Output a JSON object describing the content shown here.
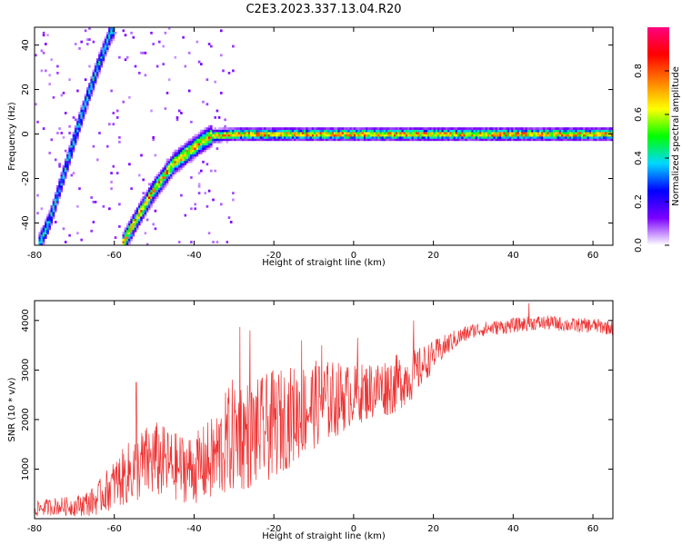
{
  "title": "C2E3.2023.337.13.04.R20",
  "chart_data": [
    {
      "type": "heatmap",
      "title": "C2E3.2023.337.13.04.R20",
      "xlabel": "Height of straight line (km)",
      "ylabel": "Frequency (Hz)",
      "xlim": [
        -80,
        65
      ],
      "ylim": [
        -50,
        48
      ],
      "xticks": [
        -80,
        -60,
        -40,
        -20,
        0,
        20,
        40,
        60
      ],
      "yticks": [
        -40,
        -20,
        0,
        20,
        40
      ],
      "colorbar": {
        "label": "Normalized spectral amplitude",
        "range": [
          0,
          1
        ],
        "ticks": [
          0.0,
          0.2,
          0.4,
          0.6,
          0.8
        ],
        "colormap": [
          "#ffffff",
          "#7b00ff",
          "#0000ff",
          "#00d8ff",
          "#00ff00",
          "#ffff00",
          "#ff8000",
          "#ff0000",
          "#ff0080"
        ]
      },
      "traces": [
        {
          "description": "steep rising trace (upper-left)",
          "points": [
            [
              -79,
              -50
            ],
            [
              -76,
              -38
            ],
            [
              -73,
              -20
            ],
            [
              -70,
              -2
            ],
            [
              -67,
              15
            ],
            [
              -64,
              31
            ],
            [
              -61,
              45
            ],
            [
              -60,
              48
            ]
          ],
          "peak_amplitude": 0.5
        },
        {
          "description": "main trace: rising then flat near 0 Hz",
          "points": [
            [
              -58,
              -50
            ],
            [
              -55,
              -40
            ],
            [
              -50,
              -25
            ],
            [
              -45,
              -13
            ],
            [
              -40,
              -6
            ],
            [
              -36,
              -1
            ],
            [
              -30,
              0
            ],
            [
              -20,
              0
            ],
            [
              0,
              0
            ],
            [
              20,
              0
            ],
            [
              40,
              0
            ],
            [
              65,
              0
            ]
          ],
          "peak_amplitude": 0.9
        }
      ]
    },
    {
      "type": "line",
      "xlabel": "Height of straight line (km)",
      "ylabel": "SNR (10 * v/v)",
      "xlim": [
        -80,
        65
      ],
      "ylim": [
        0,
        4400
      ],
      "xticks": [
        -80,
        -60,
        -40,
        -20,
        0,
        20,
        40,
        60
      ],
      "yticks": [
        1000,
        2000,
        3000,
        4000
      ],
      "color": "#ee3333",
      "envelope": {
        "x": [
          -80,
          -75,
          -70,
          -65,
          -60,
          -55,
          -50,
          -45,
          -40,
          -35,
          -30,
          -25,
          -20,
          -15,
          -10,
          -5,
          0,
          5,
          10,
          15,
          20,
          25,
          30,
          35,
          40,
          45,
          50,
          55,
          60,
          65
        ],
        "mean": [
          200,
          250,
          250,
          350,
          700,
          1000,
          1200,
          1050,
          1000,
          1200,
          1700,
          1700,
          1900,
          2100,
          2300,
          2400,
          2500,
          2600,
          2700,
          2900,
          3300,
          3600,
          3800,
          3850,
          3900,
          3950,
          3950,
          3900,
          3900,
          3850
        ],
        "amp": [
          150,
          180,
          200,
          300,
          500,
          700,
          800,
          700,
          700,
          900,
          1200,
          1100,
          1100,
          1000,
          900,
          800,
          600,
          600,
          600,
          500,
          300,
          200,
          150,
          150,
          150,
          150,
          150,
          150,
          150,
          150
        ]
      },
      "peaks": [
        [
          -54.5,
          2750
        ],
        [
          -28.5,
          3870
        ],
        [
          -26,
          3800
        ],
        [
          -13,
          3600
        ],
        [
          -8,
          3500
        ],
        [
          1,
          3650
        ],
        [
          15,
          4000
        ],
        [
          44,
          4350
        ]
      ]
    }
  ]
}
